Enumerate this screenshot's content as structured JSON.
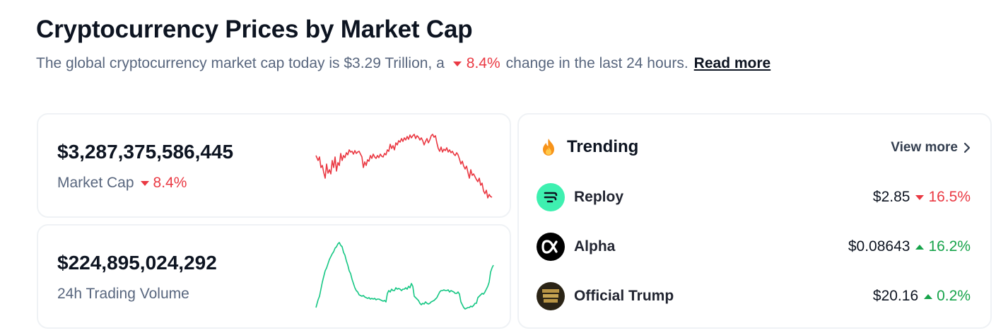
{
  "header": {
    "title": "Cryptocurrency Prices by Market Cap",
    "subtitle_prefix": "The global cryptocurrency market cap today is $3.29 Trillion, a",
    "subtitle_change": "8.4%",
    "subtitle_suffix": "change in the last 24 hours.",
    "read_more_label": "Read more"
  },
  "market_cap": {
    "value": "$3,287,375,586,445",
    "label": "Market Cap",
    "change": "8.4%",
    "change_direction": "down",
    "sparkline_color": "#ea3943"
  },
  "volume": {
    "value": "$224,895,024,292",
    "label": "24h Trading Volume",
    "sparkline_color": "#16c784"
  },
  "trending": {
    "title": "Trending",
    "icon": "fire-icon",
    "view_more_label": "View more",
    "items": [
      {
        "name": "Reploy",
        "price": "$2.85",
        "change": "16.5%",
        "direction": "down",
        "logo_color": "#3ef0b0",
        "icon": "reploy-logo-icon"
      },
      {
        "name": "Alpha",
        "price": "$0.08643",
        "change": "16.2%",
        "direction": "up",
        "logo_color": "#000000",
        "icon": "alpha-logo-icon"
      },
      {
        "name": "Official Trump",
        "price": "$20.16",
        "change": "0.2%",
        "direction": "up",
        "logo_color": "#2b2416",
        "icon": "trump-logo-icon"
      }
    ]
  },
  "colors": {
    "negative": "#ea3943",
    "positive": "#16a34a",
    "text_primary": "#0d1421",
    "text_secondary": "#58667e"
  }
}
